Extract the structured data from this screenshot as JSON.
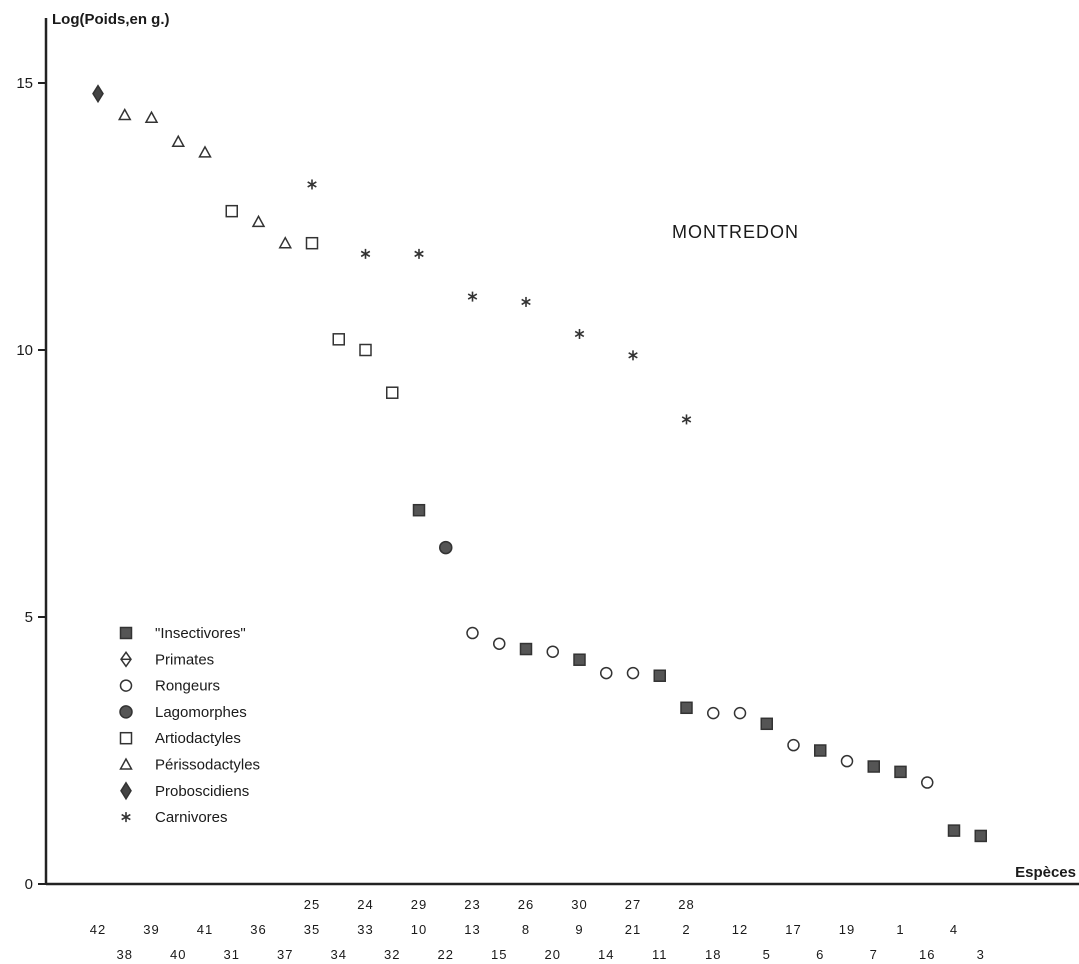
{
  "chart_data": {
    "type": "scatter",
    "ylabel": "Log(Poids,en g.)",
    "xlabel": "Espèces",
    "annotation": "MONTREDON",
    "ylim": [
      0,
      15.8
    ],
    "yticks": [
      0,
      5,
      10,
      15
    ],
    "series": [
      {
        "name": "\"Insectivores\"",
        "marker": "filled-square",
        "points": [
          [
            "29",
            7.0
          ],
          [
            "26",
            4.4
          ],
          [
            "9",
            4.2
          ],
          [
            "11",
            3.9
          ],
          [
            "2",
            3.3
          ],
          [
            "5",
            3.0
          ],
          [
            "6",
            2.5
          ],
          [
            "7",
            2.2
          ],
          [
            "1",
            2.1
          ],
          [
            "4",
            1.0
          ],
          [
            "3",
            0.9
          ]
        ]
      },
      {
        "name": "Primates",
        "marker": "half-diamond",
        "points": []
      },
      {
        "name": "Rongeurs",
        "marker": "open-circle",
        "points": [
          [
            "23",
            4.7
          ],
          [
            "15",
            4.5
          ],
          [
            "20",
            4.35
          ],
          [
            "14",
            3.95
          ],
          [
            "21",
            3.95
          ],
          [
            "18",
            3.2
          ],
          [
            "12",
            3.2
          ],
          [
            "17",
            2.6
          ],
          [
            "19",
            2.3
          ],
          [
            "16",
            1.9
          ]
        ]
      },
      {
        "name": "Lagomorphes",
        "marker": "filled-circle",
        "points": [
          [
            "22",
            6.3
          ]
        ]
      },
      {
        "name": "Artiodactyles",
        "marker": "open-square",
        "points": [
          [
            "31",
            12.6
          ],
          [
            "35",
            12.0
          ],
          [
            "34",
            10.2
          ],
          [
            "33",
            10.0
          ],
          [
            "32",
            9.2
          ]
        ]
      },
      {
        "name": "Périssodactyles",
        "marker": "open-triangle",
        "points": [
          [
            "38",
            14.4
          ],
          [
            "39",
            14.35
          ],
          [
            "40",
            13.9
          ],
          [
            "41",
            13.7
          ],
          [
            "36",
            12.4
          ],
          [
            "37",
            12.0
          ]
        ]
      },
      {
        "name": "Proboscidiens",
        "marker": "filled-diamond",
        "points": [
          [
            "42",
            14.8
          ]
        ]
      },
      {
        "name": "Carnivores",
        "marker": "asterisk",
        "points": [
          [
            "25",
            13.1
          ],
          [
            "24",
            11.8
          ],
          [
            "10",
            11.8
          ],
          [
            "13",
            11.0
          ],
          [
            "8",
            10.9
          ],
          [
            "30",
            10.3
          ],
          [
            "27",
            9.9
          ],
          [
            "28",
            8.7
          ]
        ]
      }
    ],
    "species_row1": [
      "25",
      "24",
      "29",
      "23",
      "26",
      "30",
      "27",
      "28"
    ],
    "species_row2": [
      "42",
      "39",
      "41",
      "36",
      "35",
      "33",
      "10",
      "13",
      "8",
      "9",
      "21",
      "2",
      "12",
      "17",
      "19",
      "1",
      "4"
    ],
    "species_row3": [
      "38",
      "40",
      "31",
      "37",
      "34",
      "32",
      "22",
      "15",
      "20",
      "14",
      "11",
      "18",
      "5",
      "6",
      "7",
      "16",
      "3"
    ]
  }
}
